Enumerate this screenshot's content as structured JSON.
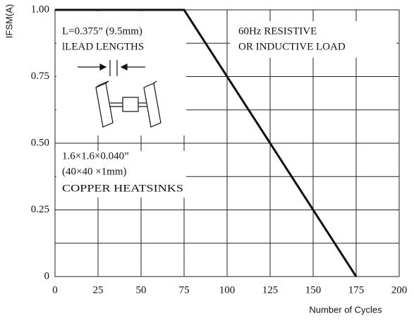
{
  "chart_data": {
    "type": "line",
    "x_label": "Number of Cycles",
    "y_label": "IFSM(A)",
    "x": [
      0,
      75,
      175
    ],
    "series": [
      {
        "color": "#111111",
        "values": [
          1,
          1,
          0
        ]
      }
    ],
    "xlim": [
      0,
      200
    ],
    "xticks": [
      0,
      25,
      50,
      75,
      100,
      125,
      150,
      175,
      200
    ],
    "ylim": [
      0,
      1
    ],
    "yticks": [
      {
        "value": 0,
        "label": "0"
      },
      {
        "value": 0.25,
        "label": "0.25"
      },
      {
        "value": 0.5,
        "label": "0.50"
      },
      {
        "value": 0.75,
        "label": "0.75"
      },
      {
        "value": 1,
        "label": "1.00"
      }
    ],
    "minor_yticks": [
      0.125,
      0.375,
      0.625,
      0.875
    ],
    "grid": true,
    "annotations": [
      "L=0.375” (9.5mm)",
      "lLEAD LENGTHS",
      "60Hz RESISTIVE",
      "OR INDUCTIVE  LOAD",
      "1.6×1.6×0.040”",
      "(40×40 ×1mm)",
      "COPPER HEATSINKS"
    ]
  }
}
